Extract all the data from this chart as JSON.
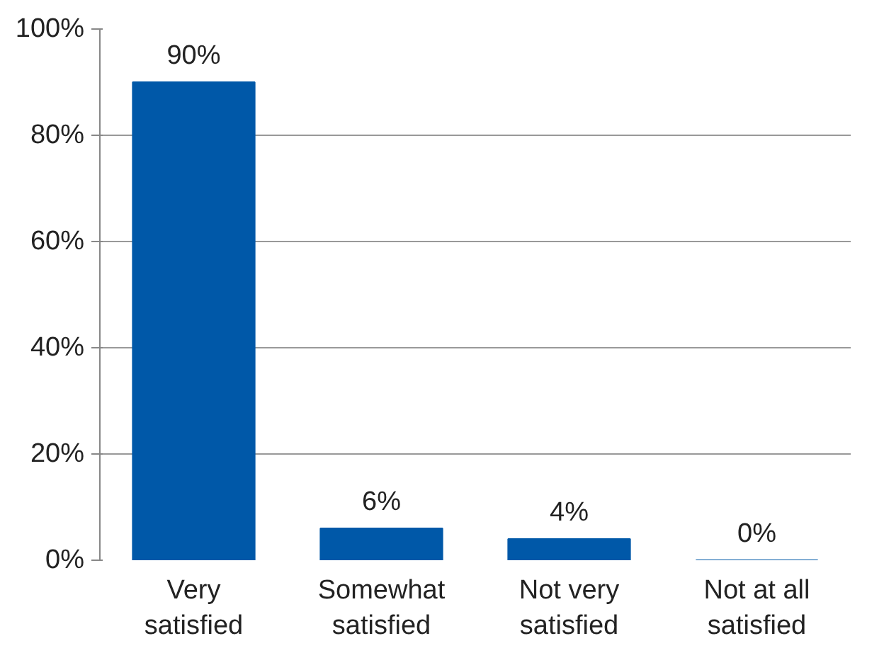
{
  "chart_data": {
    "type": "bar",
    "categories": [
      "Very\nsatisfied",
      "Somewhat\nsatisfied",
      "Not very\nsatisfied",
      "Not at all\nsatisfied"
    ],
    "values": [
      90,
      6,
      4,
      0
    ],
    "value_labels": [
      "90%",
      "6%",
      "4%",
      "0%"
    ],
    "color": "#0058a8",
    "ylim": [
      0,
      100
    ],
    "yticks": [
      {
        "value": 0,
        "label": "0%"
      },
      {
        "value": 20,
        "label": "20%"
      },
      {
        "value": 40,
        "label": "40%"
      },
      {
        "value": 60,
        "label": "60%"
      },
      {
        "value": 80,
        "label": "80%"
      },
      {
        "value": 100,
        "label": "100%"
      }
    ],
    "grid": "y"
  }
}
